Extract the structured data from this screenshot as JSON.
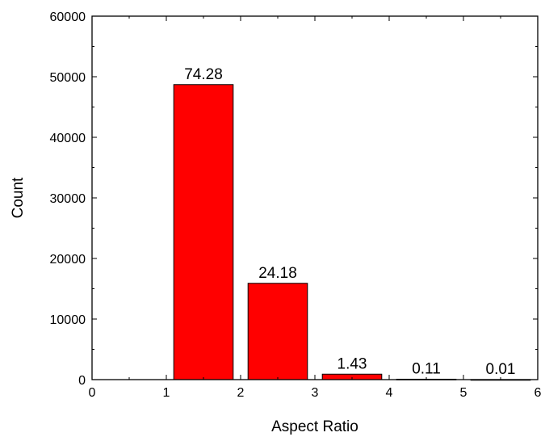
{
  "chart_data": {
    "type": "bar",
    "xlabel": "Aspect Ratio",
    "ylabel": "Count",
    "xlim": [
      0,
      6
    ],
    "ylim": [
      0,
      60000
    ],
    "x_ticks": [
      0,
      1,
      2,
      3,
      4,
      5,
      6
    ],
    "y_ticks": [
      0,
      10000,
      20000,
      30000,
      40000,
      50000,
      60000
    ],
    "grid": false,
    "bar_color": "#ff0000",
    "bars": [
      {
        "x_start": 1.1,
        "x_end": 1.9,
        "value": 48700,
        "label": "74.28"
      },
      {
        "x_start": 2.1,
        "x_end": 2.9,
        "value": 15900,
        "label": "24.18"
      },
      {
        "x_start": 3.1,
        "x_end": 3.9,
        "value": 900,
        "label": "1.43"
      },
      {
        "x_start": 4.1,
        "x_end": 4.9,
        "value": 70,
        "label": "0.11"
      },
      {
        "x_start": 5.1,
        "x_end": 5.9,
        "value": 7,
        "label": "0.01"
      }
    ]
  }
}
